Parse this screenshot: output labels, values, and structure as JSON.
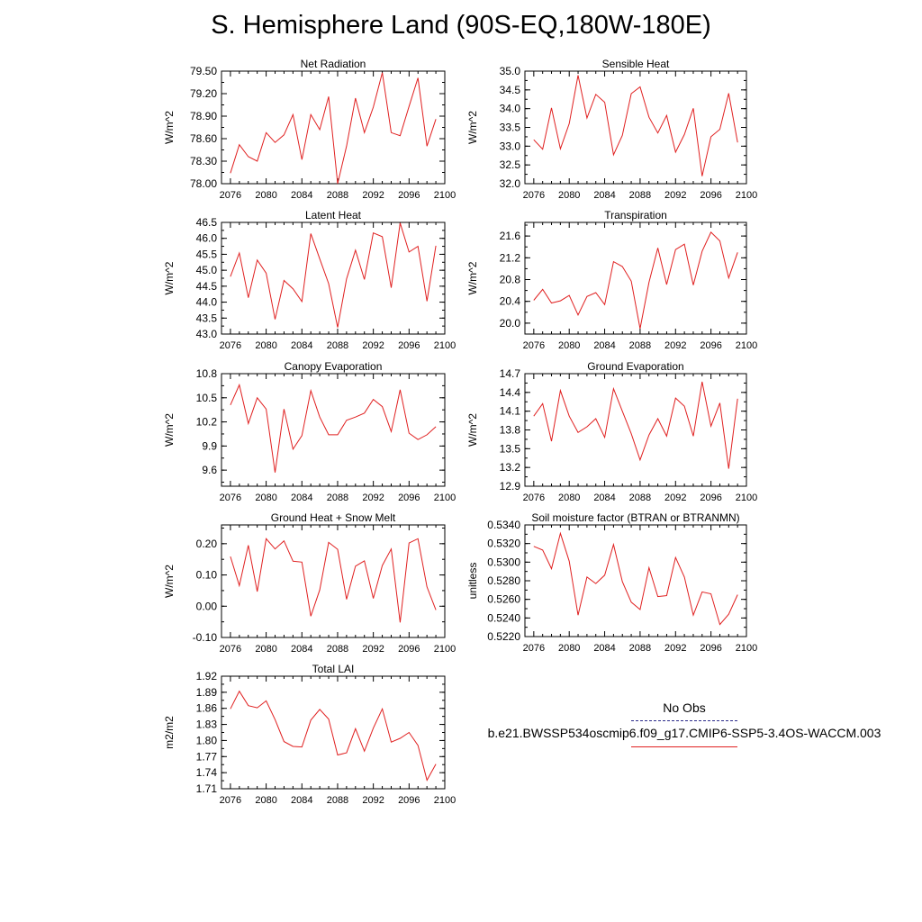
{
  "figure_title": "S. Hemisphere Land (90S-EQ,180W-180E)",
  "legend": {
    "obs_label": "No Obs",
    "case_label": "b.e21.BWSSP534oscmip6.f09_g17.CMIP6-SSP5-3.4OS-WACCM.003",
    "obs_color": "#2a2a8a",
    "case_color": "#e02020"
  },
  "chart_data": [
    {
      "type": "line",
      "title": "Net Radiation",
      "ylabel": "W/m^2",
      "x": [
        2076,
        2077,
        2078,
        2079,
        2080,
        2081,
        2082,
        2083,
        2084,
        2085,
        2086,
        2087,
        2088,
        2089,
        2090,
        2091,
        2092,
        2093,
        2094,
        2095,
        2096,
        2097,
        2098,
        2099
      ],
      "values": [
        78.14,
        78.52,
        78.36,
        78.3,
        78.68,
        78.55,
        78.65,
        78.92,
        78.32,
        78.92,
        78.72,
        79.16,
        78.0,
        78.5,
        79.14,
        78.68,
        79.02,
        79.48,
        78.68,
        78.64,
        79.03,
        79.41,
        78.5,
        78.86
      ],
      "xlim": [
        2075,
        2100
      ],
      "xticks": [
        "2076",
        "2080",
        "2084",
        "2088",
        "2092",
        "2096",
        "2100"
      ],
      "ylim": [
        78.0,
        79.5
      ],
      "yticks": [
        "78.00",
        "78.30",
        "78.60",
        "78.90",
        "79.20",
        "79.50"
      ]
    },
    {
      "type": "line",
      "title": "Sensible Heat",
      "ylabel": "W/m^2",
      "x": [
        2076,
        2077,
        2078,
        2079,
        2080,
        2081,
        2082,
        2083,
        2084,
        2085,
        2086,
        2087,
        2088,
        2089,
        2090,
        2091,
        2092,
        2093,
        2094,
        2095,
        2096,
        2097,
        2098,
        2099
      ],
      "values": [
        33.17,
        32.92,
        34.02,
        32.93,
        33.6,
        34.89,
        33.75,
        34.38,
        34.17,
        32.77,
        33.29,
        34.4,
        34.58,
        33.77,
        33.35,
        33.82,
        32.84,
        33.31,
        34.01,
        32.2,
        33.25,
        33.45,
        34.41,
        33.1
      ],
      "xlim": [
        2075,
        2100
      ],
      "xticks": [
        "2076",
        "2080",
        "2084",
        "2088",
        "2092",
        "2096",
        "2100"
      ],
      "ylim": [
        32.0,
        35.0
      ],
      "yticks": [
        "32.0",
        "32.5",
        "33.0",
        "33.5",
        "34.0",
        "34.5",
        "35.0"
      ]
    },
    {
      "type": "line",
      "title": "Latent Heat",
      "ylabel": "W/m^2",
      "x": [
        2076,
        2077,
        2078,
        2079,
        2080,
        2081,
        2082,
        2083,
        2084,
        2085,
        2086,
        2087,
        2088,
        2089,
        2090,
        2091,
        2092,
        2093,
        2094,
        2095,
        2096,
        2097,
        2098,
        2099
      ],
      "values": [
        44.8,
        45.54,
        44.14,
        45.32,
        44.91,
        43.46,
        44.68,
        44.42,
        44.02,
        46.15,
        45.36,
        44.58,
        43.21,
        44.73,
        45.63,
        44.71,
        46.17,
        46.05,
        44.45,
        46.48,
        45.57,
        45.75,
        44.03,
        45.77
      ],
      "xlim": [
        2075,
        2100
      ],
      "xticks": [
        "2076",
        "2080",
        "2084",
        "2088",
        "2092",
        "2096",
        "2100"
      ],
      "ylim": [
        43.0,
        46.5
      ],
      "yticks": [
        "43.0",
        "43.5",
        "44.0",
        "44.5",
        "45.0",
        "45.5",
        "46.0",
        "46.5"
      ]
    },
    {
      "type": "line",
      "title": "Transpiration",
      "ylabel": "W/m^2",
      "x": [
        2076,
        2077,
        2078,
        2079,
        2080,
        2081,
        2082,
        2083,
        2084,
        2085,
        2086,
        2087,
        2088,
        2089,
        2090,
        2091,
        2092,
        2093,
        2094,
        2095,
        2096,
        2097,
        2098,
        2099
      ],
      "values": [
        20.42,
        20.62,
        20.37,
        20.41,
        20.51,
        20.15,
        20.49,
        20.56,
        20.34,
        21.13,
        21.04,
        20.77,
        19.9,
        20.75,
        21.38,
        20.71,
        21.35,
        21.45,
        20.7,
        21.32,
        21.67,
        21.51,
        20.83,
        21.3
      ],
      "xlim": [
        2075,
        2100
      ],
      "xticks": [
        "2076",
        "2080",
        "2084",
        "2088",
        "2092",
        "2096",
        "2100"
      ],
      "ylim": [
        19.8,
        21.85
      ],
      "yticks": [
        "20.0",
        "20.4",
        "20.8",
        "21.2",
        "21.6"
      ]
    },
    {
      "type": "line",
      "title": "Canopy Evaporation",
      "ylabel": "W/m^2",
      "x": [
        2076,
        2077,
        2078,
        2079,
        2080,
        2081,
        2082,
        2083,
        2084,
        2085,
        2086,
        2087,
        2088,
        2089,
        2090,
        2091,
        2092,
        2093,
        2094,
        2095,
        2096,
        2097,
        2098,
        2099
      ],
      "values": [
        10.41,
        10.66,
        10.18,
        10.5,
        10.36,
        9.57,
        10.36,
        9.86,
        10.03,
        10.59,
        10.26,
        10.04,
        10.04,
        10.22,
        10.26,
        10.31,
        10.48,
        10.39,
        10.08,
        10.6,
        10.06,
        9.98,
        10.04,
        10.14
      ],
      "xlim": [
        2075,
        2100
      ],
      "xticks": [
        "2076",
        "2080",
        "2084",
        "2088",
        "2092",
        "2096",
        "2100"
      ],
      "ylim": [
        9.4,
        10.8
      ],
      "yticks": [
        "9.6",
        "9.9",
        "10.2",
        "10.5",
        "10.8"
      ]
    },
    {
      "type": "line",
      "title": "Ground Evaporation",
      "ylabel": "W/m^2",
      "x": [
        2076,
        2077,
        2078,
        2079,
        2080,
        2081,
        2082,
        2083,
        2084,
        2085,
        2086,
        2087,
        2088,
        2089,
        2090,
        2091,
        2092,
        2093,
        2094,
        2095,
        2096,
        2097,
        2098,
        2099
      ],
      "values": [
        14.02,
        14.22,
        13.62,
        14.43,
        14.02,
        13.76,
        13.85,
        13.98,
        13.68,
        14.46,
        14.1,
        13.74,
        13.32,
        13.72,
        13.98,
        13.7,
        14.31,
        14.18,
        13.7,
        14.57,
        13.86,
        14.23,
        13.18,
        14.3
      ],
      "xlim": [
        2075,
        2100
      ],
      "xticks": [
        "2076",
        "2080",
        "2084",
        "2088",
        "2092",
        "2096",
        "2100"
      ],
      "ylim": [
        12.9,
        14.7
      ],
      "yticks": [
        "12.9",
        "13.2",
        "13.5",
        "13.8",
        "14.1",
        "14.4",
        "14.7"
      ]
    },
    {
      "type": "line",
      "title": "Ground Heat + Snow Melt",
      "ylabel": "W/m^2",
      "x": [
        2076,
        2077,
        2078,
        2079,
        2080,
        2081,
        2082,
        2083,
        2084,
        2085,
        2086,
        2087,
        2088,
        2089,
        2090,
        2091,
        2092,
        2093,
        2094,
        2095,
        2096,
        2097,
        2098,
        2099
      ],
      "values": [
        0.159,
        0.066,
        0.195,
        0.047,
        0.216,
        0.183,
        0.209,
        0.144,
        0.141,
        -0.032,
        0.052,
        0.204,
        0.182,
        0.022,
        0.128,
        0.145,
        0.025,
        0.13,
        0.183,
        -0.052,
        0.202,
        0.216,
        0.062,
        -0.012
      ],
      "xlim": [
        2075,
        2100
      ],
      "xticks": [
        "2076",
        "2080",
        "2084",
        "2088",
        "2092",
        "2096",
        "2100"
      ],
      "ylim": [
        -0.1,
        0.26
      ],
      "yticks": [
        "-0.10",
        "0.00",
        "0.10",
        "0.20"
      ]
    },
    {
      "type": "line",
      "title": "Soil moisture factor (BTRAN or BTRANMN)",
      "ylabel": "unitless",
      "x": [
        2076,
        2077,
        2078,
        2079,
        2080,
        2081,
        2082,
        2083,
        2084,
        2085,
        2086,
        2087,
        2088,
        2089,
        2090,
        2091,
        2092,
        2093,
        2094,
        2095,
        2096,
        2097,
        2098,
        2099
      ],
      "values": [
        0.5317,
        0.5313,
        0.5293,
        0.5331,
        0.5301,
        0.5243,
        0.5284,
        0.5277,
        0.5286,
        0.5319,
        0.5279,
        0.5257,
        0.5249,
        0.5294,
        0.5263,
        0.5264,
        0.5305,
        0.5284,
        0.5243,
        0.5268,
        0.5266,
        0.5233,
        0.5244,
        0.5265
      ],
      "xlim": [
        2075,
        2100
      ],
      "xticks": [
        "2076",
        "2080",
        "2084",
        "2088",
        "2092",
        "2096",
        "2100"
      ],
      "ylim": [
        0.522,
        0.534
      ],
      "yticks": [
        "0.5220",
        "0.5240",
        "0.5260",
        "0.5280",
        "0.5300",
        "0.5320",
        "0.5340"
      ]
    },
    {
      "type": "line",
      "title": "Total LAI",
      "ylabel": "m2/m2",
      "x": [
        2076,
        2077,
        2078,
        2079,
        2080,
        2081,
        2082,
        2083,
        2084,
        2085,
        2086,
        2087,
        2088,
        2089,
        2090,
        2091,
        2092,
        2093,
        2094,
        2095,
        2096,
        2097,
        2098,
        2099
      ],
      "values": [
        1.859,
        1.892,
        1.865,
        1.861,
        1.874,
        1.839,
        1.798,
        1.789,
        1.788,
        1.838,
        1.858,
        1.84,
        1.773,
        1.777,
        1.822,
        1.78,
        1.823,
        1.859,
        1.797,
        1.804,
        1.815,
        1.791,
        1.726,
        1.756
      ],
      "xlim": [
        2075,
        2100
      ],
      "xticks": [
        "2076",
        "2080",
        "2084",
        "2088",
        "2092",
        "2096",
        "2100"
      ],
      "ylim": [
        1.71,
        1.92
      ],
      "yticks": [
        "1.71",
        "1.74",
        "1.77",
        "1.80",
        "1.83",
        "1.86",
        "1.89",
        "1.92"
      ]
    }
  ]
}
